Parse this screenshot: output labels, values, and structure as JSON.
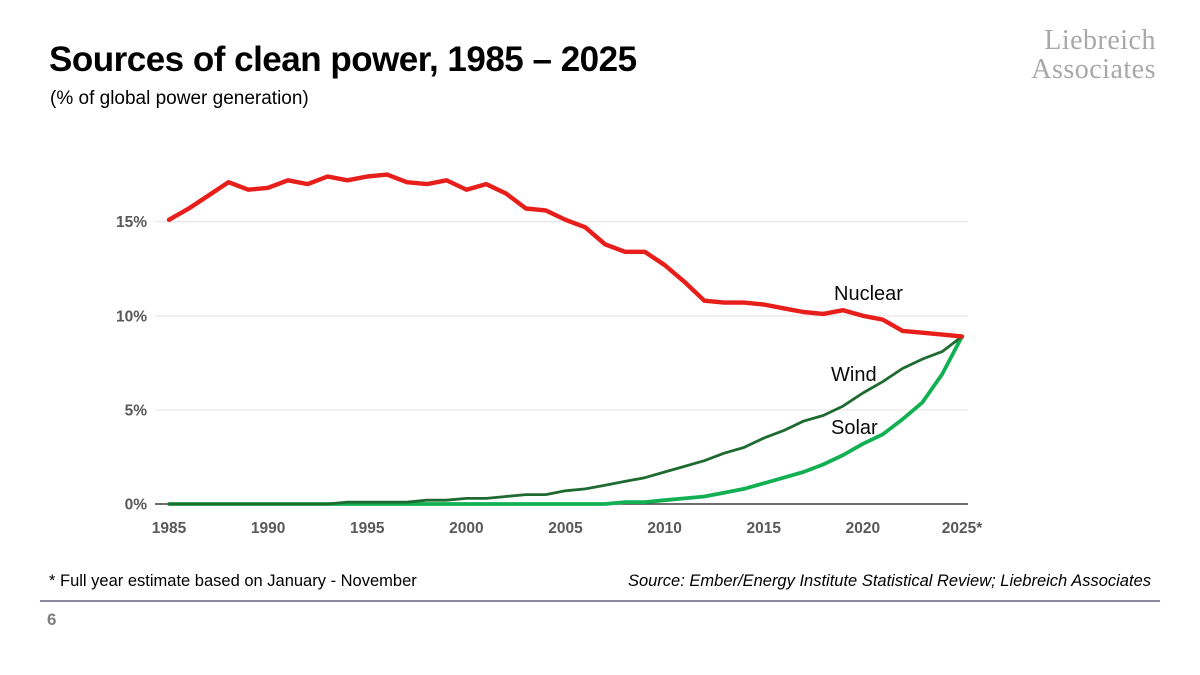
{
  "header": {
    "title": "Sources of clean power, 1985 – 2025",
    "subtitle": "(% of global power generation)"
  },
  "logo": {
    "line1": "Liebreich",
    "line2": "Associates"
  },
  "chart_data": {
    "type": "line",
    "title": "Sources of clean power, 1985 – 2025",
    "subtitle": "(% of global power generation)",
    "xlabel": "",
    "ylabel": "% of global power generation",
    "ylim": [
      0,
      18
    ],
    "grid": "horizontal",
    "legend": "inline-labels",
    "x": [
      1985,
      1986,
      1987,
      1988,
      1989,
      1990,
      1991,
      1992,
      1993,
      1994,
      1995,
      1996,
      1997,
      1998,
      1999,
      2000,
      2001,
      2002,
      2003,
      2004,
      2005,
      2006,
      2007,
      2008,
      2009,
      2010,
      2011,
      2012,
      2013,
      2014,
      2015,
      2016,
      2017,
      2018,
      2019,
      2020,
      2021,
      2022,
      2023,
      2024,
      2025
    ],
    "xticks": {
      "values": [
        1985,
        1990,
        1995,
        2000,
        2005,
        2010,
        2015,
        2020,
        2025
      ],
      "labels": [
        "1985",
        "1990",
        "1995",
        "2000",
        "2005",
        "2010",
        "2015",
        "2020",
        "2025*"
      ]
    },
    "yticks": {
      "values": [
        0,
        5,
        10,
        15
      ],
      "labels": [
        "0%",
        "5%",
        "10%",
        "15%"
      ]
    },
    "series": [
      {
        "name": "Nuclear",
        "color": "#e81e1a",
        "width": 4.4,
        "values": [
          15.1,
          15.7,
          16.4,
          17.1,
          16.7,
          16.8,
          17.2,
          17.0,
          17.4,
          17.2,
          17.4,
          17.5,
          17.1,
          17.0,
          17.2,
          16.7,
          17.0,
          16.5,
          15.7,
          15.6,
          15.1,
          14.7,
          13.8,
          13.4,
          13.4,
          12.7,
          11.8,
          10.8,
          10.7,
          10.7,
          10.6,
          10.4,
          10.2,
          10.1,
          10.3,
          10.0,
          9.8,
          9.2,
          9.1,
          9.0,
          8.9
        ]
      },
      {
        "name": "Wind",
        "color": "#1e6a31",
        "width": 2.8,
        "values": [
          0.0,
          0.0,
          0.0,
          0.0,
          0.0,
          0.0,
          0.0,
          0.0,
          0.0,
          0.1,
          0.1,
          0.1,
          0.1,
          0.2,
          0.2,
          0.3,
          0.3,
          0.4,
          0.5,
          0.5,
          0.7,
          0.8,
          1.0,
          1.2,
          1.4,
          1.7,
          2.0,
          2.3,
          2.7,
          3.0,
          3.5,
          3.9,
          4.4,
          4.7,
          5.2,
          5.9,
          6.5,
          7.2,
          7.7,
          8.1,
          8.9
        ]
      },
      {
        "name": "Solar",
        "color": "#12b052",
        "width": 3.8,
        "values": [
          0.0,
          0.0,
          0.0,
          0.0,
          0.0,
          0.0,
          0.0,
          0.0,
          0.0,
          0.0,
          0.0,
          0.0,
          0.0,
          0.0,
          0.0,
          0.0,
          0.0,
          0.0,
          0.0,
          0.0,
          0.0,
          0.0,
          0.0,
          0.1,
          0.1,
          0.2,
          0.3,
          0.4,
          0.6,
          0.8,
          1.1,
          1.4,
          1.7,
          2.1,
          2.6,
          3.2,
          3.7,
          4.5,
          5.4,
          6.9,
          8.9
        ]
      }
    ]
  },
  "footer": {
    "footnote": "* Full year estimate based on January - November",
    "source": "Source: Ember/Energy Institute Statistical Review; Liebreich Associates",
    "page_number": "6"
  }
}
